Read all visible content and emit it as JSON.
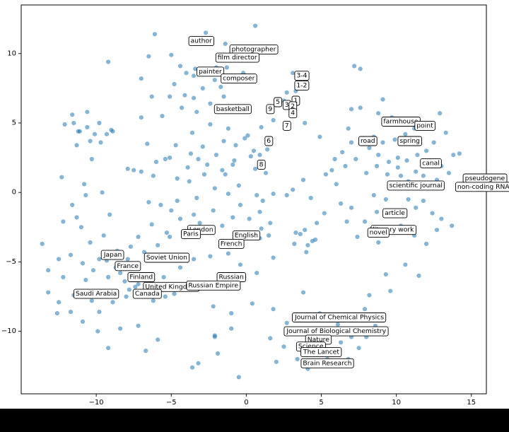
{
  "chart_data": {
    "type": "scatter",
    "title": "",
    "xlabel": "",
    "ylabel": "",
    "xlim": [
      -15,
      16
    ],
    "ylim": [
      -14.5,
      13.5
    ],
    "grid": false,
    "legend": "none",
    "colors": {
      "points": "#1f77b4",
      "axes": "#000000",
      "background": "#ffffff"
    },
    "x_ticks": [
      {
        "value": -10,
        "label": "−10"
      },
      {
        "value": -5,
        "label": "−5"
      },
      {
        "value": 0,
        "label": "0"
      },
      {
        "value": 5,
        "label": "5"
      },
      {
        "value": 10,
        "label": "10"
      },
      {
        "value": 15,
        "label": "15"
      }
    ],
    "y_ticks": [
      {
        "value": 10,
        "label": "10"
      },
      {
        "value": 5,
        "label": "5"
      },
      {
        "value": 0,
        "label": "0"
      },
      {
        "value": -5,
        "label": "−5"
      },
      {
        "value": -10,
        "label": "−10"
      }
    ],
    "annotations": [
      {
        "text": "author",
        "x": -3.0,
        "y": 10.9
      },
      {
        "text": "photographer",
        "x": 0.5,
        "y": 10.3
      },
      {
        "text": "film director",
        "x": -0.6,
        "y": 9.7
      },
      {
        "text": "painter",
        "x": -2.4,
        "y": 8.7
      },
      {
        "text": "composer",
        "x": -0.5,
        "y": 8.2
      },
      {
        "text": "basketball",
        "x": -0.9,
        "y": 6.0
      },
      {
        "text": "3-4",
        "x": 3.7,
        "y": 8.4
      },
      {
        "text": "1-2",
        "x": 3.7,
        "y": 7.7
      },
      {
        "text": "5",
        "x": 2.1,
        "y": 6.5
      },
      {
        "text": "1",
        "x": 3.3,
        "y": 6.6
      },
      {
        "text": "3",
        "x": 2.7,
        "y": 6.3
      },
      {
        "text": "2",
        "x": 3.1,
        "y": 6.2
      },
      {
        "text": "9",
        "x": 1.6,
        "y": 6.0
      },
      {
        "text": "4",
        "x": 3.1,
        "y": 5.7
      },
      {
        "text": "7",
        "x": 2.7,
        "y": 4.8
      },
      {
        "text": "6",
        "x": 1.5,
        "y": 3.7
      },
      {
        "text": "8",
        "x": 1.0,
        "y": 2.0
      },
      {
        "text": "farmhouse",
        "x": 10.3,
        "y": 5.1
      },
      {
        "text": "point",
        "x": 11.9,
        "y": 4.8
      },
      {
        "text": "road",
        "x": 8.1,
        "y": 3.7
      },
      {
        "text": "spring",
        "x": 10.9,
        "y": 3.7
      },
      {
        "text": "canal",
        "x": 12.3,
        "y": 2.1
      },
      {
        "text": "pseudogene",
        "x": 15.9,
        "y": 1.0
      },
      {
        "text": "non-coding RNA",
        "x": 15.8,
        "y": 0.4
      },
      {
        "text": "scientific journal",
        "x": 11.3,
        "y": 0.5
      },
      {
        "text": "article",
        "x": 9.9,
        "y": -1.5
      },
      {
        "text": "literary work",
        "x": 9.8,
        "y": -2.7
      },
      {
        "text": "novel",
        "x": 8.8,
        "y": -2.9
      },
      {
        "text": "London",
        "x": -3.0,
        "y": -2.7
      },
      {
        "text": "Paris",
        "x": -3.7,
        "y": -3.0
      },
      {
        "text": "English",
        "x": 0.0,
        "y": -3.1
      },
      {
        "text": "French",
        "x": -1.0,
        "y": -3.7
      },
      {
        "text": "Japan",
        "x": -8.9,
        "y": -4.5
      },
      {
        "text": "Soviet Union",
        "x": -5.3,
        "y": -4.7
      },
      {
        "text": "France",
        "x": -7.9,
        "y": -5.3
      },
      {
        "text": "Finland",
        "x": -7.0,
        "y": -6.1
      },
      {
        "text": "Russian",
        "x": -1.0,
        "y": -6.1
      },
      {
        "text": "United Kingdom",
        "x": -5.0,
        "y": -6.8
      },
      {
        "text": "Russian Empire",
        "x": -2.2,
        "y": -6.7
      },
      {
        "text": "Saudi Arabia",
        "x": -10.0,
        "y": -7.3
      },
      {
        "text": "Canada",
        "x": -6.6,
        "y": -7.3
      },
      {
        "text": "Journal of Chemical Physics",
        "x": 6.2,
        "y": -9.0
      },
      {
        "text": "Journal of Biological Chemistry",
        "x": 6.0,
        "y": -10.0
      },
      {
        "text": "Nature",
        "x": 4.8,
        "y": -10.6
      },
      {
        "text": "Science",
        "x": 4.3,
        "y": -11.1
      },
      {
        "text": "The Lancet",
        "x": 5.0,
        "y": -11.5
      },
      {
        "text": "Brain Research",
        "x": 5.4,
        "y": -12.3
      }
    ],
    "points": [
      [
        0.6,
        12.0
      ],
      [
        -2.7,
        11.5
      ],
      [
        -6.1,
        11.4
      ],
      [
        -1.4,
        10.7
      ],
      [
        -0.3,
        10.2
      ],
      [
        -6.5,
        9.8
      ],
      [
        -5.0,
        9.9
      ],
      [
        -9.2,
        9.4
      ],
      [
        -4.4,
        9.1
      ],
      [
        -3.4,
        8.9
      ],
      [
        -2.0,
        9.0
      ],
      [
        -1.3,
        9.0
      ],
      [
        -0.2,
        8.6
      ],
      [
        -4.0,
        8.6
      ],
      [
        -3.5,
        8.4
      ],
      [
        -2.1,
        8.1
      ],
      [
        -7.0,
        8.2
      ],
      [
        -4.8,
        7.8
      ],
      [
        -2.9,
        7.5
      ],
      [
        -1.7,
        7.6
      ],
      [
        -5.1,
        6.9
      ],
      [
        -6.3,
        6.9
      ],
      [
        -3.5,
        6.8
      ],
      [
        -4.1,
        7.0
      ],
      [
        -2.4,
        6.4
      ],
      [
        -4.3,
        6.1
      ],
      [
        -1.5,
        6.9
      ],
      [
        -3.3,
        5.8
      ],
      [
        -5.6,
        5.5
      ],
      [
        -7.0,
        5.4
      ],
      [
        1.0,
        4.7
      ],
      [
        -0.1,
        3.9
      ],
      [
        -1.5,
        3.7
      ],
      [
        -0.7,
        3.4
      ],
      [
        -2.9,
        3.3
      ],
      [
        0.5,
        3.0
      ],
      [
        -3.7,
        2.8
      ],
      [
        -3.2,
        2.4
      ],
      [
        -5.1,
        2.5
      ],
      [
        -6.0,
        2.2
      ],
      [
        -7.9,
        1.7
      ],
      [
        -7.5,
        1.6
      ],
      [
        -7.0,
        1.5
      ],
      [
        -6.2,
        1.2
      ],
      [
        -4.6,
        1.0
      ],
      [
        -3.8,
        0.8
      ],
      [
        -2.8,
        1.3
      ],
      [
        -1.6,
        1.6
      ],
      [
        -0.9,
        2.0
      ],
      [
        0.3,
        2.6
      ],
      [
        0.6,
        1.7
      ],
      [
        1.3,
        1.4
      ],
      [
        -2.1,
        0.3
      ],
      [
        -1.2,
        -0.1
      ],
      [
        -0.5,
        0.5
      ],
      [
        0.7,
        -0.2
      ],
      [
        -3.3,
        -0.4
      ],
      [
        -4.6,
        -0.6
      ],
      [
        -5.7,
        -0.9
      ],
      [
        -6.5,
        -0.7
      ],
      [
        -5.0,
        -1.3
      ],
      [
        -3.5,
        -1.6
      ],
      [
        -2.2,
        -1.3
      ],
      [
        -0.4,
        -0.9
      ],
      [
        1.1,
        -0.6
      ],
      [
        1.8,
        -0.1
      ],
      [
        2.7,
        -0.2
      ],
      [
        1.0,
        -2.6
      ],
      [
        1.5,
        -3.1
      ],
      [
        0.9,
        -3.3
      ],
      [
        -9.3,
        4.2
      ],
      [
        -10.6,
        4.7
      ],
      [
        -11.1,
        4.4
      ],
      [
        -10.1,
        4.2
      ],
      [
        -9.8,
        5.0
      ],
      [
        -11.6,
        5.6
      ],
      [
        -11.3,
        3.4
      ],
      [
        -10.4,
        3.7
      ],
      [
        -12.1,
        4.9
      ],
      [
        -11.2,
        4.4
      ],
      [
        -9.7,
        3.6
      ],
      [
        -8.9,
        4.4
      ],
      [
        -11.5,
        5.0
      ],
      [
        -10.6,
        5.8
      ],
      [
        -9.0,
        4.5
      ],
      [
        -10.3,
        2.4
      ],
      [
        -12.3,
        1.1
      ],
      [
        -10.8,
        0.6
      ],
      [
        -11.6,
        -0.9
      ],
      [
        -10.7,
        -0.2
      ],
      [
        -9.6,
        0.0
      ],
      [
        -9.1,
        -1.6
      ],
      [
        -11.3,
        -1.8
      ],
      [
        -12.2,
        -2.1
      ],
      [
        -11.0,
        -2.5
      ],
      [
        -10.4,
        -3.6
      ],
      [
        -9.5,
        -3.1
      ],
      [
        -11.7,
        -4.5
      ],
      [
        -12.5,
        -4.8
      ],
      [
        -10.9,
        -5.1
      ],
      [
        -9.8,
        -4.8
      ],
      [
        -8.6,
        -4.2
      ],
      [
        -7.9,
        -4.8
      ],
      [
        -8.4,
        -5.8
      ],
      [
        -9.2,
        -6.1
      ],
      [
        -10.2,
        -5.6
      ],
      [
        -10.7,
        -6.3
      ],
      [
        -12.2,
        -6.1
      ],
      [
        -13.2,
        -7.2
      ],
      [
        -12.5,
        -7.9
      ],
      [
        -11.5,
        -7.4
      ],
      [
        -10.3,
        -7.8
      ],
      [
        -9.5,
        -7.2
      ],
      [
        -8.9,
        -7.9
      ],
      [
        -7.8,
        -7.0
      ],
      [
        -7.2,
        -6.6
      ],
      [
        -6.3,
        -6.5
      ],
      [
        -5.5,
        -6.1
      ],
      [
        -4.4,
        -5.4
      ],
      [
        -3.5,
        -4.8
      ],
      [
        -2.4,
        -4.6
      ],
      [
        -1.2,
        -4.4
      ],
      [
        -0.4,
        -5.2
      ],
      [
        0.7,
        -5.8
      ],
      [
        1.8,
        -4.7
      ],
      [
        -3.1,
        -6.9
      ],
      [
        -4.8,
        -7.3
      ],
      [
        -11.7,
        -8.6
      ],
      [
        -9.8,
        -8.6
      ],
      [
        -10.9,
        -9.3
      ],
      [
        -9.9,
        -10.0
      ],
      [
        -8.4,
        -9.8
      ],
      [
        -7.2,
        -9.6
      ],
      [
        -5.9,
        -10.6
      ],
      [
        -6.7,
        -11.4
      ],
      [
        -9.2,
        -11.2
      ],
      [
        -13.6,
        -3.7
      ],
      [
        -13.2,
        -5.6
      ],
      [
        -12.6,
        -8.7
      ],
      [
        -3.6,
        -12.6
      ],
      [
        -3.2,
        -12.3
      ],
      [
        -2.1,
        -10.3
      ],
      [
        -1.9,
        -11.6
      ],
      [
        -0.5,
        -13.3
      ],
      [
        -2.2,
        -8.2
      ],
      [
        -1.0,
        -8.7
      ],
      [
        0.4,
        -8.0
      ],
      [
        1.8,
        -8.4
      ],
      [
        2.7,
        -9.4
      ],
      [
        1.6,
        -10.5
      ],
      [
        2.5,
        -11.1
      ],
      [
        3.2,
        -10.0
      ],
      [
        3.4,
        -12.0
      ],
      [
        4.1,
        -12.7
      ],
      [
        5.4,
        -12.0
      ],
      [
        6.2,
        -12.4
      ],
      [
        6.8,
        -12.0
      ],
      [
        7.5,
        -11.2
      ],
      [
        7.0,
        -10.4
      ],
      [
        6.9,
        -9.1
      ],
      [
        6.1,
        -9.5
      ],
      [
        5.4,
        -10.6
      ],
      [
        4.3,
        -11.4
      ],
      [
        4.5,
        -9.8
      ],
      [
        4.9,
        -8.7
      ],
      [
        3.8,
        -7.2
      ],
      [
        4.0,
        -4.3
      ],
      [
        4.4,
        -3.5
      ],
      [
        3.6,
        -3.0
      ],
      [
        3.3,
        -2.9
      ],
      [
        4.1,
        -3.8
      ],
      [
        4.6,
        -3.4
      ],
      [
        3.9,
        -2.7
      ],
      [
        3.2,
        -3.7
      ],
      [
        4.7,
        -2.2
      ],
      [
        5.2,
        -1.5
      ],
      [
        4.3,
        -0.4
      ],
      [
        3.1,
        0.2
      ],
      [
        3.8,
        0.9
      ],
      [
        5.3,
        1.3
      ],
      [
        6.0,
        0.6
      ],
      [
        6.3,
        -0.8
      ],
      [
        7.0,
        -1.1
      ],
      [
        6.7,
        -2.1
      ],
      [
        7.4,
        -3.2
      ],
      [
        7.9,
        -2.1
      ],
      [
        8.7,
        -1.4
      ],
      [
        8.5,
        -0.2
      ],
      [
        9.3,
        -0.5
      ],
      [
        9.8,
        0.5
      ],
      [
        10.3,
        1.2
      ],
      [
        10.8,
        0.8
      ],
      [
        11.3,
        1.5
      ],
      [
        11.8,
        1.2
      ],
      [
        12.2,
        0.6
      ],
      [
        12.7,
        0.9
      ],
      [
        13.5,
        1.4
      ],
      [
        14.2,
        2.8
      ],
      [
        13.8,
        2.7
      ],
      [
        13.0,
        1.9
      ],
      [
        12.5,
        2.3
      ],
      [
        12.0,
        3.0
      ],
      [
        11.4,
        2.7
      ],
      [
        10.7,
        2.3
      ],
      [
        10.1,
        2.5
      ],
      [
        9.5,
        2.2
      ],
      [
        8.8,
        2.7
      ],
      [
        8.2,
        3.2
      ],
      [
        7.6,
        3.5
      ],
      [
        8.5,
        4.0
      ],
      [
        9.1,
        3.6
      ],
      [
        9.9,
        3.8
      ],
      [
        10.6,
        4.2
      ],
      [
        11.2,
        4.6
      ],
      [
        12.1,
        4.9
      ],
      [
        12.9,
        5.7
      ],
      [
        13.3,
        4.3
      ],
      [
        12.5,
        3.6
      ],
      [
        9.7,
        5.4
      ],
      [
        8.8,
        5.7
      ],
      [
        7.6,
        6.1
      ],
      [
        6.8,
        4.6
      ],
      [
        7.0,
        3.6
      ],
      [
        6.4,
        2.9
      ],
      [
        5.9,
        2.4
      ],
      [
        5.7,
        1.6
      ],
      [
        6.6,
        1.9
      ],
      [
        7.3,
        2.4
      ],
      [
        8.0,
        1.4
      ],
      [
        8.7,
        1.9
      ],
      [
        9.4,
        1.3
      ],
      [
        10.1,
        1.8
      ],
      [
        10.8,
        -0.5
      ],
      [
        11.3,
        -1.1
      ],
      [
        11.8,
        -0.6
      ],
      [
        12.4,
        -1.5
      ],
      [
        13.0,
        -1.9
      ],
      [
        13.7,
        -2.4
      ],
      [
        12.7,
        -2.7
      ],
      [
        12.0,
        -3.7
      ],
      [
        11.2,
        -3.1
      ],
      [
        10.3,
        -2.4
      ],
      [
        9.4,
        -2.8
      ],
      [
        8.8,
        -3.6
      ],
      [
        10.6,
        -5.2
      ],
      [
        11.5,
        -6.0
      ],
      [
        9.6,
        -7.1
      ],
      [
        8.2,
        -7.4
      ],
      [
        7.9,
        -8.4
      ],
      [
        8.6,
        -9.6
      ],
      [
        8.0,
        -10.4
      ],
      [
        8.5,
        -8.8
      ],
      [
        9.3,
        -5.9
      ],
      [
        7.6,
        8.9
      ],
      [
        7.2,
        9.1
      ],
      [
        9.1,
        6.7
      ],
      [
        7.0,
        6.0
      ],
      [
        4.9,
        4.0
      ],
      [
        3.9,
        5.0
      ],
      [
        3.3,
        7.3
      ],
      [
        2.7,
        7.2
      ],
      [
        3.1,
        8.6
      ],
      [
        3.5,
        8.0
      ],
      [
        2.5,
        6.6
      ],
      [
        2.0,
        6.3
      ],
      [
        1.8,
        5.2
      ],
      [
        1.4,
        3.1
      ],
      [
        0.9,
        2.7
      ],
      [
        -1.4,
        1.3
      ],
      [
        -2.0,
        2.7
      ],
      [
        -0.8,
        2.3
      ],
      [
        -2.6,
        2.0
      ],
      [
        -3.9,
        1.8
      ],
      [
        -4.4,
        -1.9
      ],
      [
        -5.3,
        -2.9
      ],
      [
        -6.3,
        -2.3
      ],
      [
        -7.2,
        -3.2
      ],
      [
        -7.7,
        -3.9
      ],
      [
        -6.8,
        -4.3
      ],
      [
        -5.9,
        -3.8
      ],
      [
        -5.1,
        -3.2
      ],
      [
        -4.0,
        -3.1
      ],
      [
        -3.1,
        -2.2
      ],
      [
        -2.5,
        -2.9
      ],
      [
        -1.6,
        -2.4
      ],
      [
        -0.9,
        -1.8
      ],
      [
        0.2,
        -1.9
      ],
      [
        0.9,
        -1.4
      ],
      [
        1.6,
        -2.2
      ],
      [
        -6.9,
        -6.0
      ],
      [
        -7.4,
        -6.8
      ],
      [
        -8.1,
        -6.4
      ],
      [
        -8.7,
        -5.4
      ],
      [
        -9.3,
        -4.9
      ],
      [
        -8.0,
        -7.5
      ],
      [
        -6.2,
        -7.8
      ],
      [
        -5.4,
        -7.5
      ],
      [
        -2.1,
        -10.4
      ],
      [
        -1.0,
        -9.8
      ],
      [
        2.0,
        -12.2
      ],
      [
        6.3,
        -10.8
      ],
      [
        7.1,
        -9.9
      ],
      [
        5.6,
        -12.3
      ],
      [
        0.1,
        4.1
      ],
      [
        -1.2,
        4.6
      ],
      [
        -2.4,
        4.9
      ],
      [
        -3.6,
        4.3
      ],
      [
        -4.7,
        3.4
      ],
      [
        -5.4,
        2.4
      ],
      [
        -6.6,
        3.5
      ]
    ]
  }
}
